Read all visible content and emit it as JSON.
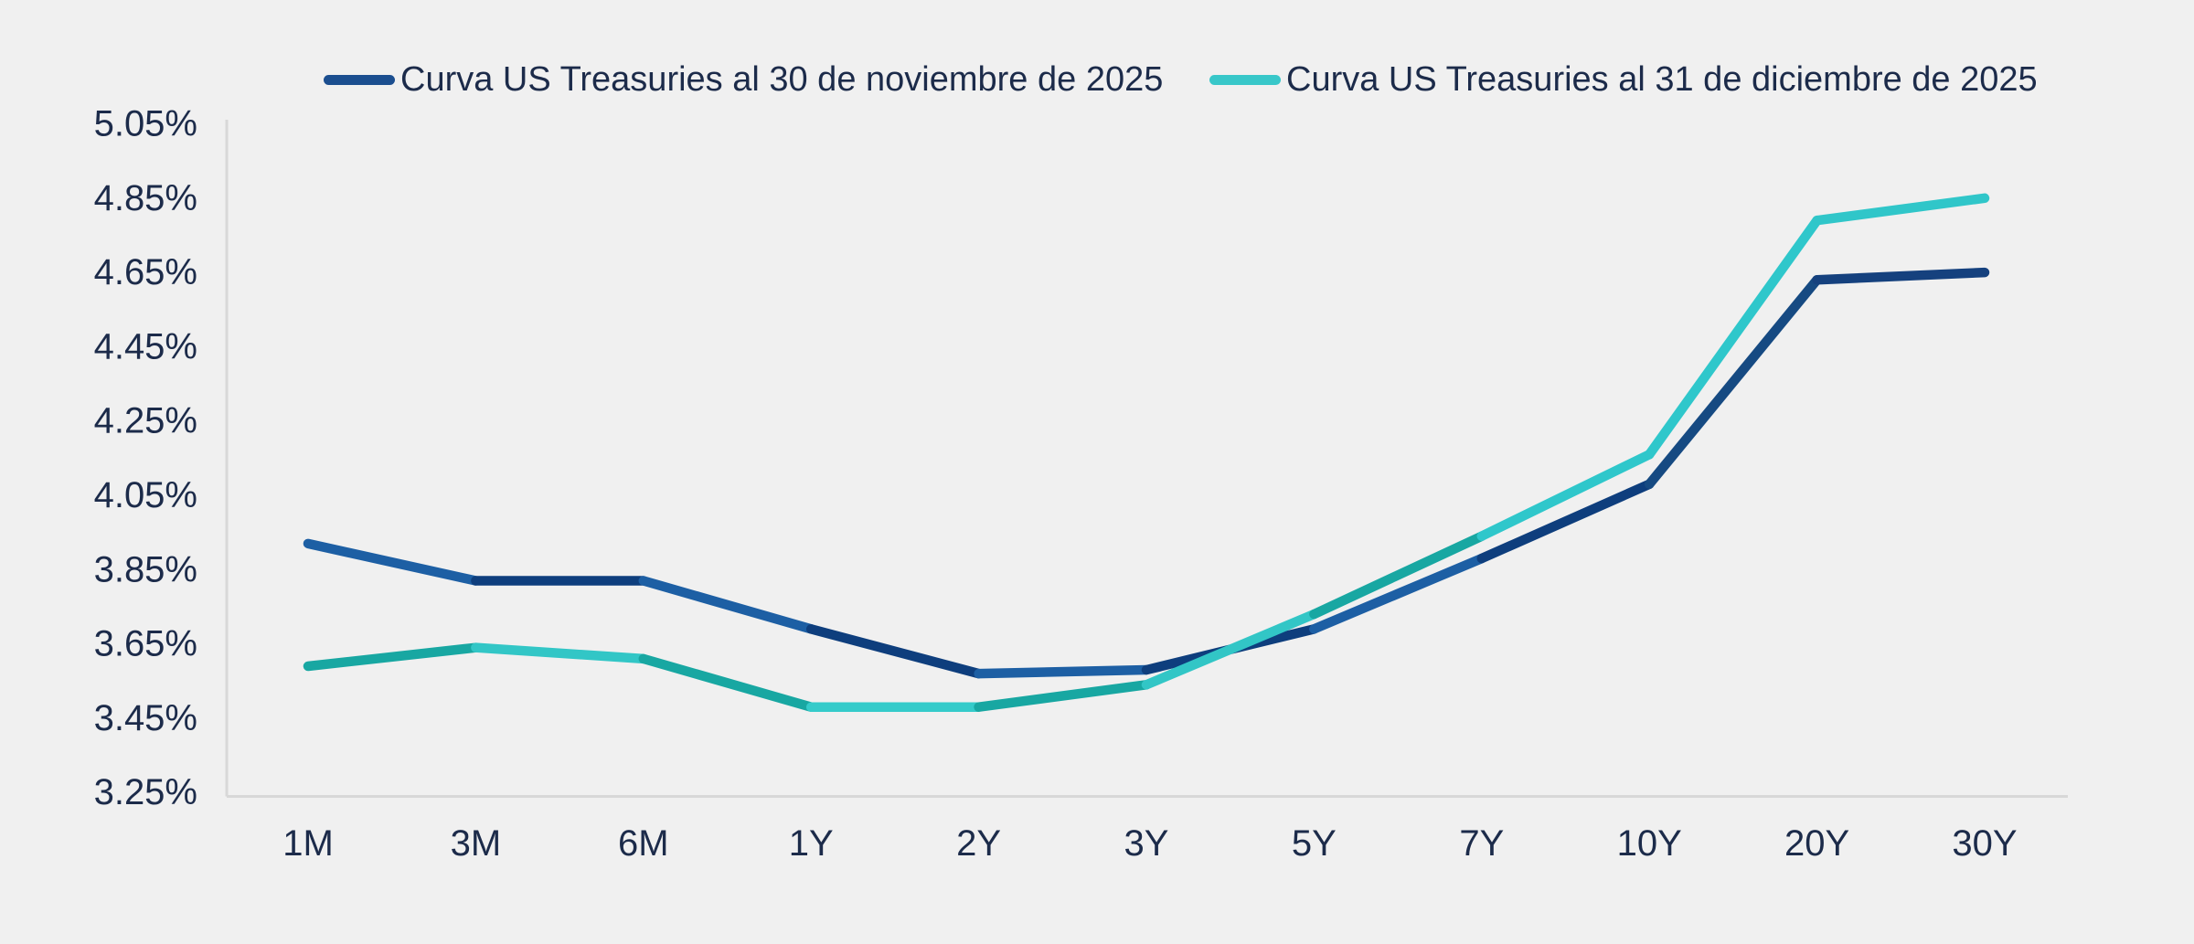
{
  "colors": {
    "background": "#f0f0f0",
    "axis_line": "#d8d8d8",
    "text": "#1c2b4a",
    "series_navy": "#1b4e8f",
    "series_teal": "#38c7c9"
  },
  "chart_data": {
    "type": "line",
    "title": "",
    "xlabel": "",
    "ylabel": "",
    "categories": [
      "1M",
      "3M",
      "6M",
      "1Y",
      "2Y",
      "3Y",
      "5Y",
      "7Y",
      "10Y",
      "20Y",
      "30Y"
    ],
    "series": [
      {
        "name": "Curva US Treasuries al 30 de noviembre de 2025",
        "values": [
          3.92,
          3.82,
          3.82,
          3.69,
          3.57,
          3.58,
          3.69,
          3.88,
          4.08,
          4.63,
          4.65
        ],
        "color": "#1b4e8f",
        "segment_colors": [
          "#1d5fa4",
          "#0e3e7d",
          "#1d5fa4",
          "#0e3e7d",
          "#1d5fa4",
          "#0e3e7d",
          "#1d5fa4",
          "#0e3e7d",
          "#164a82",
          "#15417e"
        ]
      },
      {
        "name": "Curva US Treasuries al 31 de diciembre de 2025",
        "values": [
          3.59,
          3.64,
          3.61,
          3.48,
          3.48,
          3.54,
          3.73,
          3.94,
          4.16,
          4.79,
          4.85
        ],
        "color": "#38c7c9",
        "segment_colors": [
          "#18a7a2",
          "#32c6c6",
          "#18a7a2",
          "#35cbca",
          "#18a7a2",
          "#32c6c6",
          "#18a7a2",
          "#2fc7cb",
          "#2fc7cb",
          "#30c6c9"
        ]
      }
    ],
    "ylim": [
      3.25,
      5.05
    ],
    "ytick_step": 0.2,
    "ytick_labels": [
      "5.05%",
      "4.85%",
      "4.65%",
      "4.45%",
      "4.25%",
      "4.05%",
      "3.85%",
      "3.65%",
      "3.45%",
      "3.25%"
    ],
    "grid": false,
    "legend_position": "top"
  }
}
